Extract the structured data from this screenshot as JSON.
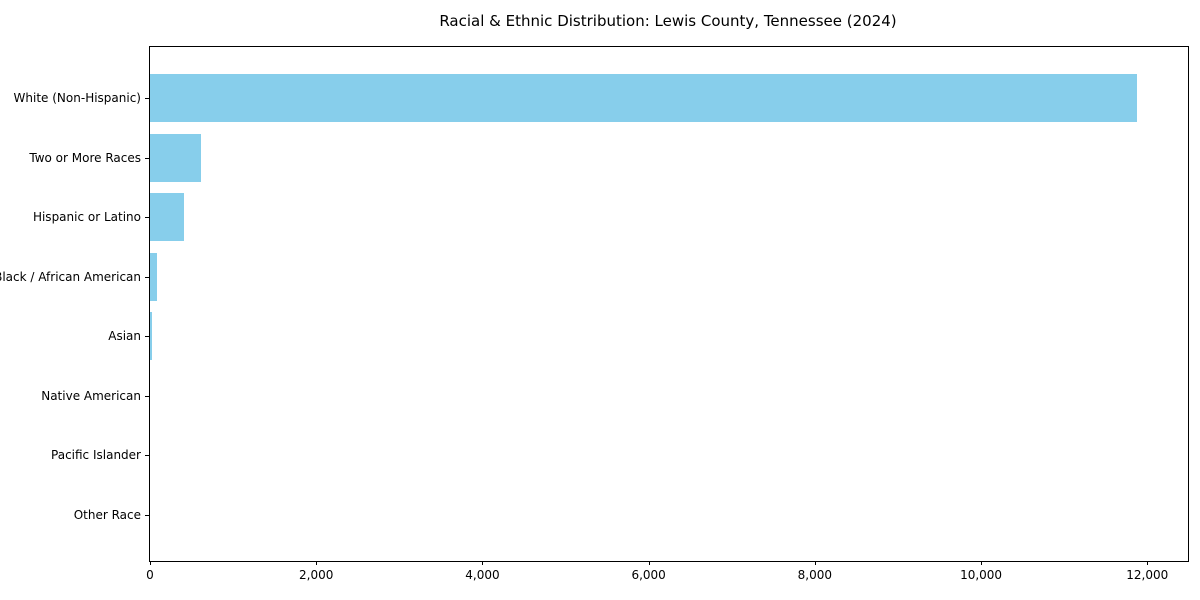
{
  "chart_data": {
    "type": "bar",
    "orientation": "horizontal",
    "title": "Racial & Ethnic Distribution: Lewis County, Tennessee (2024)",
    "categories": [
      "White (Non-Hispanic)",
      "Two or More Races",
      "Hispanic or Latino",
      "Black / African American",
      "Asian",
      "Native American",
      "Pacific Islander",
      "Other Race"
    ],
    "values": [
      11880,
      610,
      410,
      80,
      30,
      0,
      0,
      0
    ],
    "bar_color": "#87CEEB",
    "xlim": [
      0,
      12490
    ],
    "x_ticks": [
      0,
      2000,
      4000,
      6000,
      8000,
      10000,
      12000
    ],
    "x_tick_labels": [
      "0",
      "2,000",
      "4,000",
      "6,000",
      "8,000",
      "10,000",
      "12,000"
    ],
    "xlabel": "",
    "ylabel": "",
    "grid": false,
    "legend": null,
    "axis_color": "#000000",
    "background_color": "#ffffff"
  }
}
